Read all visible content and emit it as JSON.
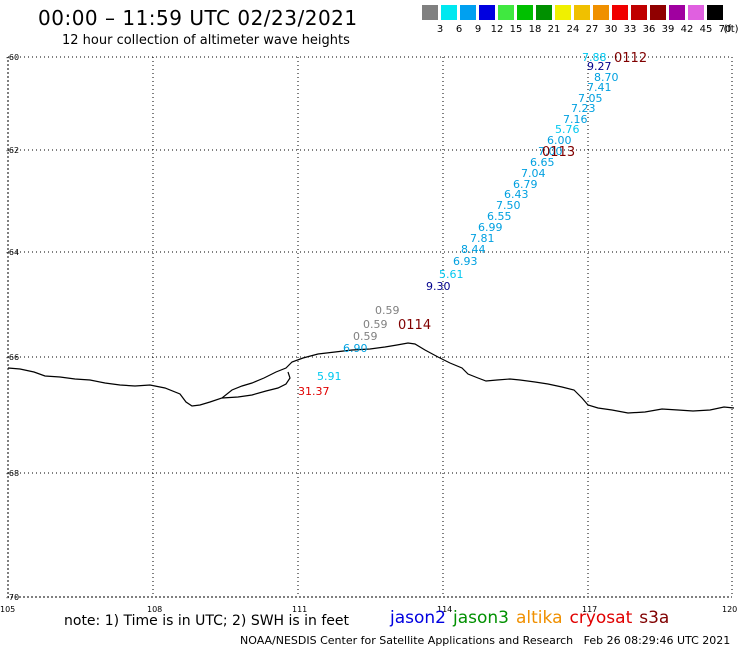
{
  "header": {
    "title": "00:00 – 11:59 UTC 02/23/2021",
    "subtitle": "12 hour collection of altimeter wave heights"
  },
  "legend": {
    "unit": "(ft)",
    "bins": [
      {
        "label": "3",
        "color": "#808080"
      },
      {
        "label": "6",
        "color": "#00e8f0"
      },
      {
        "label": "9",
        "color": "#00a0f0"
      },
      {
        "label": "12",
        "color": "#0000e0"
      },
      {
        "label": "15",
        "color": "#40e840"
      },
      {
        "label": "18",
        "color": "#00c000"
      },
      {
        "label": "21",
        "color": "#009000"
      },
      {
        "label": "24",
        "color": "#f0f000"
      },
      {
        "label": "27",
        "color": "#f0c000"
      },
      {
        "label": "30",
        "color": "#f09000"
      },
      {
        "label": "33",
        "color": "#f00000"
      },
      {
        "label": "36",
        "color": "#c00000"
      },
      {
        "label": "39",
        "color": "#900000"
      },
      {
        "label": "42",
        "color": "#a000a0"
      },
      {
        "label": "45",
        "color": "#e060e0"
      },
      {
        "label": "70",
        "color": "#000000"
      }
    ]
  },
  "map": {
    "lat_labels": [
      "-60",
      "-62",
      "-64",
      "-66",
      "-68",
      "-70"
    ],
    "lon_labels": [
      "105",
      "108",
      "111",
      "114",
      "117",
      "120"
    ],
    "grid": "dotted",
    "colors": {
      "coast": "#000000",
      "time_label": "#800000"
    },
    "time_labels": [
      "0112",
      "0113",
      "0114"
    ],
    "observations": [
      {
        "value": "7.88",
        "color": "#00c8f0"
      },
      {
        "value": "9.27",
        "color": "#00008b"
      },
      {
        "value": "8.70",
        "color": "#00a0e0"
      },
      {
        "value": "7.41",
        "color": "#00a0e0"
      },
      {
        "value": "7.05",
        "color": "#00a0e0"
      },
      {
        "value": "7.23",
        "color": "#00a0e0"
      },
      {
        "value": "7.16",
        "color": "#00a0e0"
      },
      {
        "value": "5.76",
        "color": "#00c8f0"
      },
      {
        "value": "6.00",
        "color": "#00a0e0"
      },
      {
        "value": "7.00",
        "color": "#00a0e0"
      },
      {
        "value": "6.65",
        "color": "#00a0e0"
      },
      {
        "value": "7.04",
        "color": "#00a0e0"
      },
      {
        "value": "6.79",
        "color": "#00a0e0"
      },
      {
        "value": "6.43",
        "color": "#00a0e0"
      },
      {
        "value": "7.50",
        "color": "#00a0e0"
      },
      {
        "value": "6.55",
        "color": "#00a0e0"
      },
      {
        "value": "6.99",
        "color": "#00a0e0"
      },
      {
        "value": "7.81",
        "color": "#00a0e0"
      },
      {
        "value": "8.44",
        "color": "#00a0e0"
      },
      {
        "value": "6.93",
        "color": "#00a0e0"
      },
      {
        "value": "5.61",
        "color": "#00c8f0"
      },
      {
        "value": "9.30",
        "color": "#00008b"
      },
      {
        "value": "0.59",
        "color": "#808080"
      },
      {
        "value": "0.59",
        "color": "#808080"
      },
      {
        "value": "0.59",
        "color": "#808080"
      },
      {
        "value": "6.90",
        "color": "#00a0e0"
      },
      {
        "value": "5.91",
        "color": "#00c8f0"
      },
      {
        "value": "31.37",
        "color": "#e00000"
      }
    ]
  },
  "footer": {
    "note": "note: 1) Time is in UTC; 2) SWH is in feet",
    "satellites": [
      {
        "name": "jason2",
        "color": "#0000e0"
      },
      {
        "name": "jason3",
        "color": "#009000"
      },
      {
        "name": "altika",
        "color": "#f09000"
      },
      {
        "name": "cryosat",
        "color": "#e00000"
      },
      {
        "name": "s3a",
        "color": "#800000"
      }
    ],
    "credit": "NOAA/NESDIS Center for Satellite Applications and Research",
    "timestamp": "Feb 26 08:29:46 UTC 2021"
  }
}
